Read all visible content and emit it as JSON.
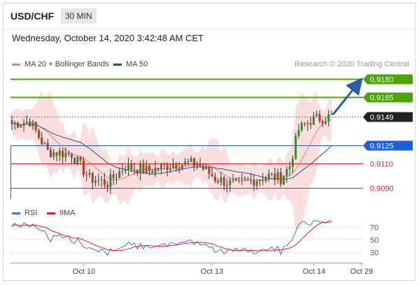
{
  "header": {
    "symbol": "USD/CHF",
    "timeframe": "30 MIN"
  },
  "timestamp": "Wednesday, October 14, 2020 3:42:48 AM CET",
  "legend": {
    "items": [
      {
        "label": "MA 20 + Bollinger Bands",
        "color": "#f08080"
      },
      {
        "label": "MA 50",
        "color": "#2a4f8f"
      }
    ],
    "credit": "Research © 2020 Trading Central"
  },
  "rsi_legend": {
    "items": [
      {
        "label": "RSI",
        "color": "#4a6fd6"
      },
      {
        "label": "9MA",
        "color": "#e02020"
      }
    ]
  },
  "chart_data": {
    "type": "candlestick",
    "price_levels": [
      {
        "value": "0.9180",
        "kind": "target",
        "color": "#4ea30a"
      },
      {
        "value": "0.9165",
        "kind": "resistance",
        "color": "#4ea30a"
      },
      {
        "value": "0.9149",
        "kind": "current",
        "color": "#222222"
      },
      {
        "value": "0.9125",
        "kind": "pivot",
        "color": "#1f5fd6"
      },
      {
        "value": "0.9110",
        "kind": "support",
        "color": "#e02020"
      },
      {
        "value": "0.9090",
        "kind": "support",
        "color": "#e02020"
      }
    ],
    "x_labels": [
      "Oct 10",
      "Oct 13",
      "Oct 14",
      "Oct 29"
    ],
    "rsi": {
      "levels": [
        "70",
        "50",
        "30"
      ]
    }
  }
}
